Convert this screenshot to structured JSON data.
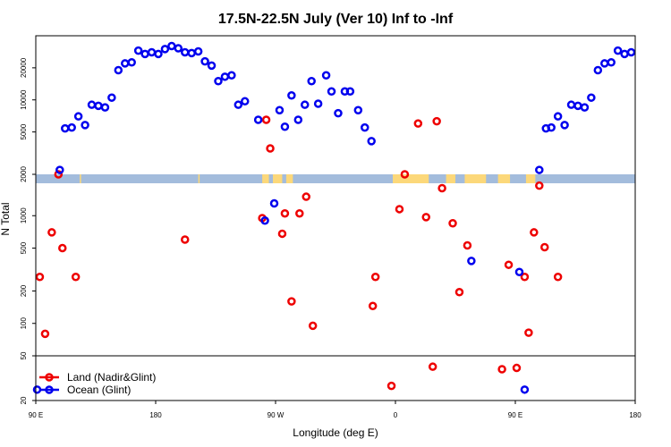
{
  "chart_data": {
    "type": "scatter",
    "title": "17.5N-22.5N July (Ver 10)   Inf to -Inf",
    "xlabel": "Longitude (deg E)",
    "ylabel": "N Total",
    "x_ticks": [
      {
        "value": 90,
        "label": "90 E"
      },
      {
        "value": 180,
        "label": "180"
      },
      {
        "value": 270,
        "label": "90 W"
      },
      {
        "value": 360,
        "label": "0"
      },
      {
        "value": 450,
        "label": "90 E"
      },
      {
        "value": 540,
        "label": "180"
      }
    ],
    "xlim": [
      90,
      540
    ],
    "panels": {
      "top": {
        "ylim": [
          2000,
          40000
        ],
        "yscale": "log",
        "y_ticks": [
          {
            "value": 2000,
            "label": "2000"
          },
          {
            "value": 5000,
            "label": "5000"
          },
          {
            "value": 10000,
            "label": "10000"
          },
          {
            "value": 20000,
            "label": "20000"
          }
        ]
      },
      "middle": {
        "ylim": [
          50,
          2000
        ],
        "yscale": "log",
        "y_ticks": [
          {
            "value": 50,
            "label": "50"
          },
          {
            "value": 100,
            "label": "100"
          },
          {
            "value": 200,
            "label": "200"
          },
          {
            "value": 500,
            "label": "500"
          },
          {
            "value": 1000,
            "label": "1000"
          }
        ]
      },
      "bottom": {
        "ylim": [
          20,
          50
        ],
        "yscale": "log",
        "y_ticks": [
          {
            "value": 20,
            "label": "20"
          }
        ]
      }
    },
    "map_strip": {
      "ocean_color": "#a3bcdc",
      "land_color": "#fcd87a",
      "land_ranges": [
        [
          123,
          124
        ],
        [
          212,
          213
        ],
        [
          260,
          265
        ],
        [
          268,
          275
        ],
        [
          278,
          283
        ],
        [
          358,
          385
        ],
        [
          398,
          405
        ],
        [
          412,
          428
        ],
        [
          437,
          446
        ],
        [
          458,
          465
        ]
      ]
    },
    "series": [
      {
        "name": "Land (Nadir&Glint)",
        "color": "#ee0000",
        "points": [
          [
            93,
            270
          ],
          [
            97,
            80
          ],
          [
            102,
            700
          ],
          [
            107,
            2000
          ],
          [
            110,
            500
          ],
          [
            120,
            270
          ],
          [
            202,
            600
          ],
          [
            260,
            950
          ],
          [
            263,
            6500
          ],
          [
            266,
            3500
          ],
          [
            275,
            680
          ],
          [
            277,
            1050
          ],
          [
            282,
            160
          ],
          [
            288,
            1050
          ],
          [
            293,
            1500
          ],
          [
            298,
            95
          ],
          [
            343,
            145
          ],
          [
            345,
            270
          ],
          [
            357,
            27
          ],
          [
            363,
            1150
          ],
          [
            367,
            2000
          ],
          [
            377,
            6000
          ],
          [
            383,
            970
          ],
          [
            388,
            40
          ],
          [
            391,
            6300
          ],
          [
            395,
            1800
          ],
          [
            403,
            850
          ],
          [
            408,
            195
          ],
          [
            414,
            530
          ],
          [
            440,
            38
          ],
          [
            445,
            350
          ],
          [
            451,
            39
          ],
          [
            457,
            270
          ],
          [
            460,
            82
          ],
          [
            464,
            700
          ],
          [
            468,
            1900
          ],
          [
            472,
            510
          ],
          [
            482,
            270
          ]
        ]
      },
      {
        "name": "Ocean (Glint)",
        "color": "#0000ee",
        "points": [
          [
            91,
            25
          ],
          [
            108,
            2200
          ],
          [
            112,
            5400
          ],
          [
            117,
            5500
          ],
          [
            122,
            7000
          ],
          [
            127,
            5800
          ],
          [
            132,
            9000
          ],
          [
            137,
            8800
          ],
          [
            142,
            8500
          ],
          [
            147,
            10500
          ],
          [
            152,
            19000
          ],
          [
            157,
            22000
          ],
          [
            162,
            22500
          ],
          [
            167,
            29000
          ],
          [
            172,
            27000
          ],
          [
            177,
            28000
          ],
          [
            182,
            27000
          ],
          [
            187,
            30000
          ],
          [
            192,
            32000
          ],
          [
            197,
            30500
          ],
          [
            202,
            28000
          ],
          [
            207,
            27500
          ],
          [
            212,
            28500
          ],
          [
            217,
            23000
          ],
          [
            222,
            21000
          ],
          [
            227,
            15000
          ],
          [
            232,
            16500
          ],
          [
            237,
            17000
          ],
          [
            242,
            9000
          ],
          [
            247,
            9700
          ],
          [
            257,
            6500
          ],
          [
            262,
            900
          ],
          [
            269,
            1300
          ],
          [
            273,
            8000
          ],
          [
            277,
            5600
          ],
          [
            282,
            11000
          ],
          [
            287,
            6500
          ],
          [
            292,
            9000
          ],
          [
            297,
            15000
          ],
          [
            302,
            9200
          ],
          [
            308,
            17000
          ],
          [
            312,
            12000
          ],
          [
            317,
            7500
          ],
          [
            322,
            12000
          ],
          [
            326,
            12000
          ],
          [
            332,
            8000
          ],
          [
            337,
            5500
          ],
          [
            342,
            4100
          ],
          [
            457,
            25
          ],
          [
            417,
            380
          ],
          [
            453,
            300
          ],
          [
            468,
            2200
          ],
          [
            473,
            5400
          ],
          [
            477,
            5500
          ],
          [
            482,
            7000
          ],
          [
            487,
            5800
          ],
          [
            492,
            9000
          ],
          [
            497,
            8800
          ],
          [
            502,
            8500
          ],
          [
            507,
            10500
          ],
          [
            512,
            19000
          ],
          [
            517,
            22000
          ],
          [
            522,
            22500
          ],
          [
            527,
            29000
          ],
          [
            532,
            27000
          ],
          [
            537,
            28000
          ]
        ]
      }
    ],
    "legend": {
      "position": "bottom-left",
      "entries": [
        "Land (Nadir&Glint)",
        "Ocean (Glint)"
      ]
    }
  }
}
